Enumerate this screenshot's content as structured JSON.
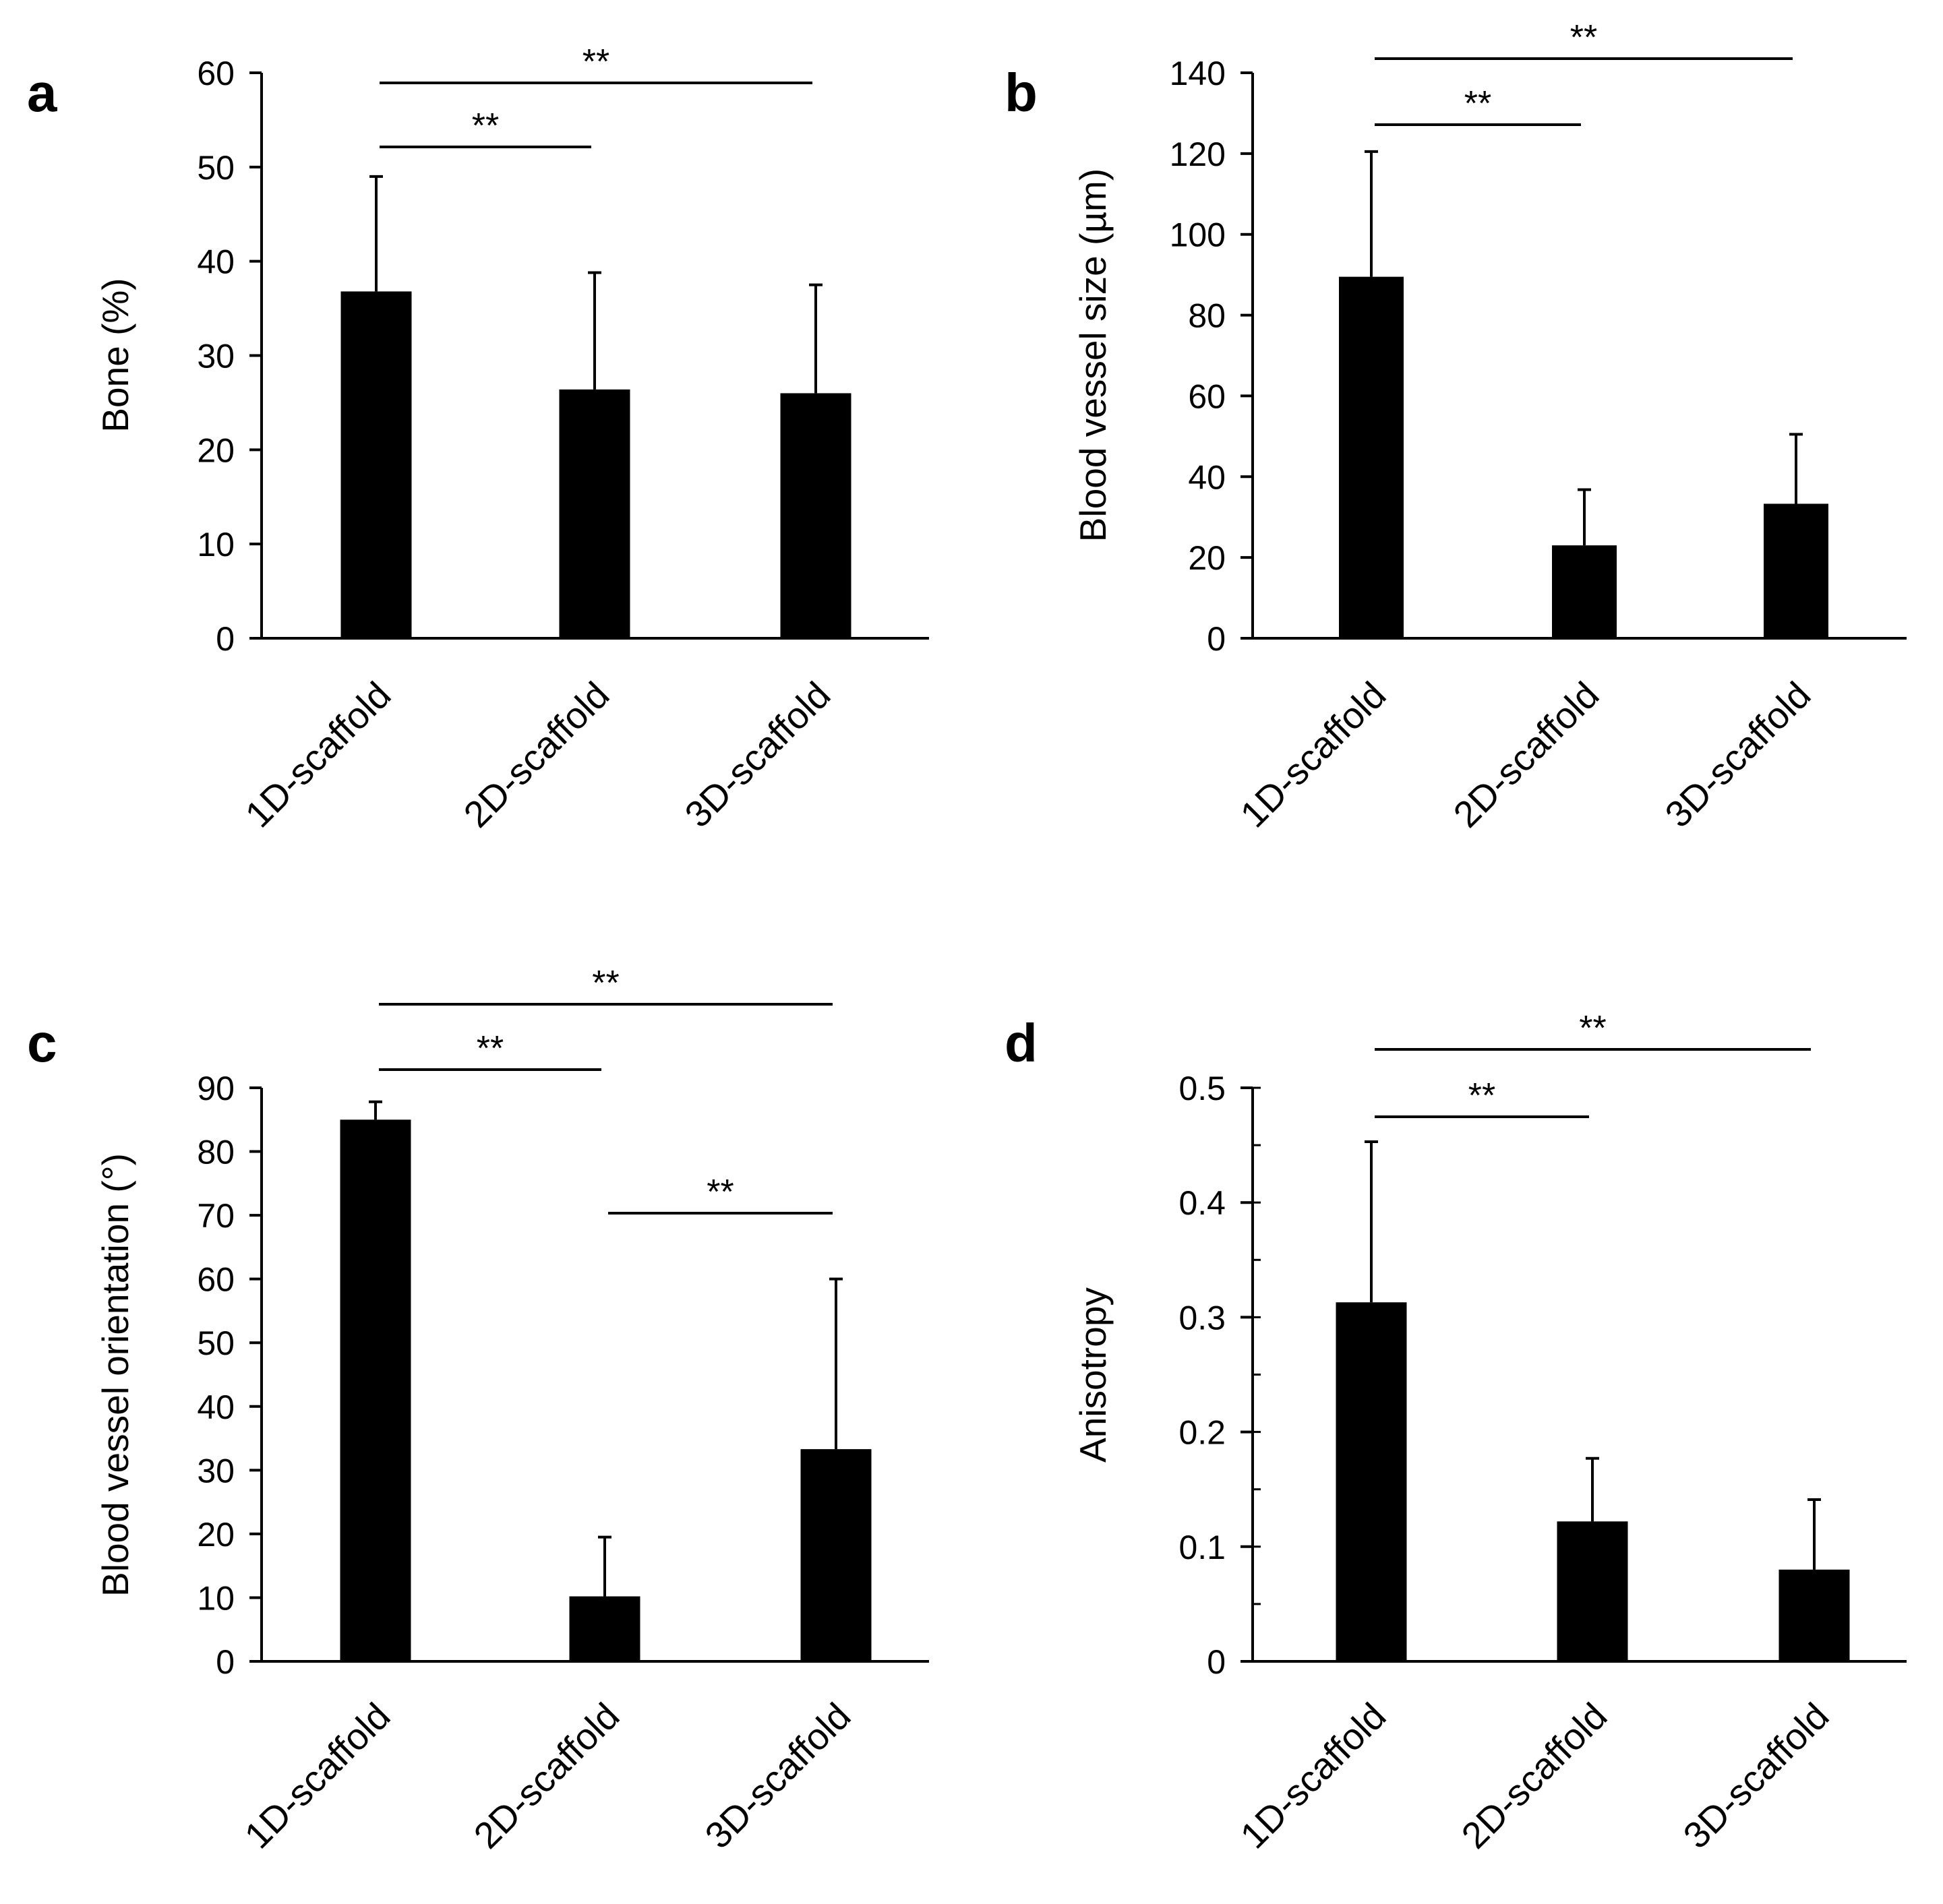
{
  "colors": {
    "bar": "#000000",
    "axis": "#000000",
    "background": "#ffffff"
  },
  "chart_data": [
    {
      "panel": "a",
      "type": "bar",
      "title": "",
      "xlabel": "",
      "ylabel": "Bone (%)",
      "categories": [
        "1D-scaffold",
        "2D-scaffold",
        "3D-scaffold"
      ],
      "values": [
        36.8,
        26.4,
        26.0
      ],
      "error_plus": [
        12.2,
        12.4,
        11.5
      ],
      "ylim": [
        0,
        60
      ],
      "yticks": [
        0,
        10,
        20,
        30,
        40,
        50,
        60
      ],
      "ytick_labels": [
        "0",
        "10",
        "20",
        "30",
        "40",
        "50",
        "60"
      ],
      "minor_step": null,
      "significance": [
        {
          "from": 0,
          "to": 1,
          "label": "**"
        },
        {
          "from": 0,
          "to": 2,
          "label": "**"
        }
      ]
    },
    {
      "panel": "b",
      "type": "bar",
      "title": "",
      "xlabel": "",
      "ylabel": "Blood vessel size (µm)",
      "categories": [
        "1D-scaffold",
        "2D-scaffold",
        "3D-scaffold"
      ],
      "values": [
        89.5,
        23.0,
        33.3
      ],
      "error_plus": [
        31.0,
        13.8,
        17.2
      ],
      "ylim": [
        0,
        140
      ],
      "yticks": [
        0,
        20,
        40,
        60,
        80,
        100,
        120,
        140
      ],
      "ytick_labels": [
        "0",
        "20",
        "40",
        "60",
        "80",
        "100",
        "120",
        "140"
      ],
      "minor_step": null,
      "significance": [
        {
          "from": 0,
          "to": 1,
          "label": "**"
        },
        {
          "from": 0,
          "to": 2,
          "label": "**"
        }
      ]
    },
    {
      "panel": "c",
      "type": "bar",
      "title": "",
      "xlabel": "",
      "ylabel": "Blood vessel orientation (°)",
      "categories": [
        "1D-scaffold",
        "2D-scaffold",
        "3D-scaffold"
      ],
      "values": [
        85.0,
        10.2,
        33.3
      ],
      "error_plus": [
        2.8,
        9.3,
        26.7
      ],
      "ylim": [
        0,
        90
      ],
      "yticks": [
        0,
        10,
        20,
        30,
        40,
        50,
        60,
        70,
        80,
        90
      ],
      "ytick_labels": [
        "0",
        "10",
        "20",
        "30",
        "40",
        "50",
        "60",
        "70",
        "80",
        "90"
      ],
      "minor_step": null,
      "significance": [
        {
          "from": 0,
          "to": 1,
          "label": "**"
        },
        {
          "from": 0,
          "to": 2,
          "label": "**"
        },
        {
          "from": 1,
          "to": 2,
          "label": "**"
        }
      ]
    },
    {
      "panel": "d",
      "type": "bar",
      "title": "",
      "xlabel": "",
      "ylabel": "Anisotropy",
      "categories": [
        "1D-scaffold",
        "2D-scaffold",
        "3D-scaffold"
      ],
      "values": [
        0.313,
        0.122,
        0.08
      ],
      "error_plus": [
        0.14,
        0.055,
        0.061
      ],
      "ylim": [
        0,
        0.5
      ],
      "yticks": [
        0,
        0.1,
        0.2,
        0.3,
        0.4,
        0.5
      ],
      "ytick_labels": [
        "0",
        "0.1",
        "0.2",
        "0.3",
        "0.4",
        "0.5"
      ],
      "minor_step": 0.05,
      "significance": [
        {
          "from": 0,
          "to": 1,
          "label": "**"
        },
        {
          "from": 0,
          "to": 2,
          "label": "**"
        }
      ]
    }
  ]
}
